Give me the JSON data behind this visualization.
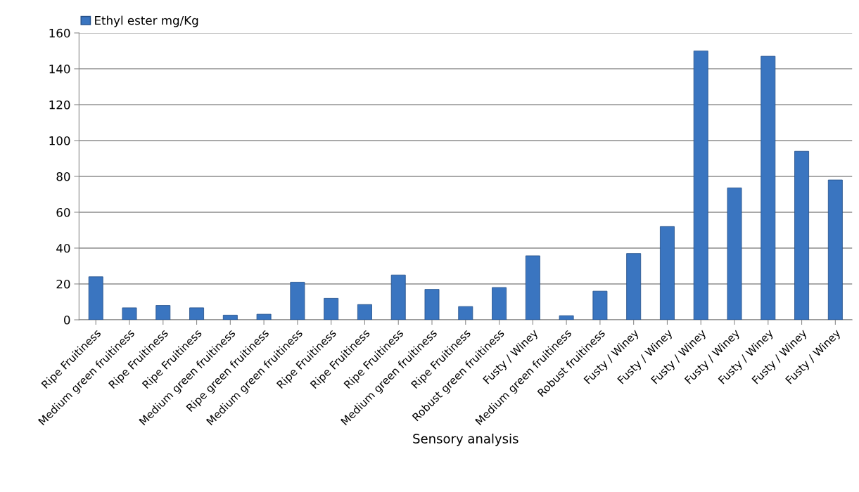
{
  "chart_data": {
    "type": "bar",
    "xlabel": "Sensory analysis",
    "categories": [
      "Ripe Fruitiness",
      "Medium green fruitiness",
      "Ripe Fruitiness",
      "Ripe Fruitiness",
      "Medium green fruitiness",
      "Ripe green fruitiness",
      "Medium green fruitiness",
      "Ripe Fruitiness",
      "Ripe Fruitiness",
      "Ripe Fruitiness",
      "Medium green fruitiness",
      "Ripe Fruitiness",
      "Robust green fruitiness",
      "Fusty / Winey",
      "Medium green fruitiness",
      "Robust fruitiness",
      "Fusty / Winey",
      "Fusty / Winey",
      "Fusty / Winey",
      "Fusty / Winey",
      "Fusty / Winey",
      "Fusty / Winey",
      "Fusty / Winey"
    ],
    "series": [
      {
        "name": "Ethyl ester mg/Kg",
        "color": "#3a75c0",
        "values": [
          24,
          6.7,
          8,
          6.7,
          2.6,
          3.1,
          21,
          12,
          8.5,
          25,
          17,
          7.4,
          18,
          35.7,
          2.3,
          16,
          37,
          52,
          150,
          73.6,
          147,
          94,
          78
        ]
      }
    ],
    "ylim": [
      0,
      160
    ],
    "yticks": [
      0,
      20,
      40,
      60,
      80,
      100,
      120,
      140,
      160
    ],
    "grid": "y",
    "legend": "top left"
  }
}
